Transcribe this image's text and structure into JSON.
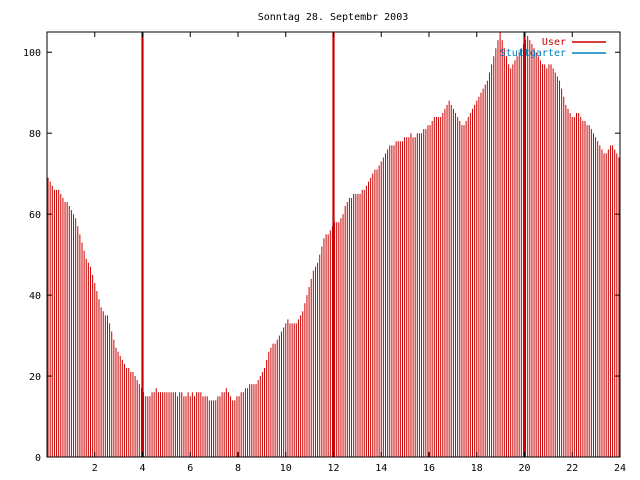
{
  "chart_data": {
    "type": "bar",
    "title": "Sonntag 28. Septembr 2003",
    "xlabel": "",
    "ylabel": "",
    "xlim": [
      0,
      24
    ],
    "ylim": [
      0,
      105
    ],
    "x_ticks": [
      2,
      4,
      6,
      8,
      10,
      12,
      14,
      16,
      18,
      20,
      22,
      24
    ],
    "y_ticks": [
      0,
      20,
      40,
      60,
      80,
      100
    ],
    "grid": false,
    "legend_position": "top-right",
    "series": [
      {
        "name": "User",
        "color": "#cc0000",
        "values": [
          69,
          68,
          67,
          66,
          66,
          66,
          65,
          64,
          63,
          63,
          62,
          61,
          60,
          59,
          57,
          55,
          53,
          51,
          49,
          48,
          47,
          45,
          43,
          41,
          39,
          37,
          36,
          35,
          35,
          33,
          31,
          29,
          27,
          26,
          25,
          24,
          23,
          22,
          22,
          21,
          21,
          20,
          19,
          18,
          17,
          16,
          15,
          15,
          15,
          16,
          16,
          17,
          16,
          16,
          16,
          16,
          16,
          16,
          16,
          16,
          16,
          15,
          16,
          16,
          15,
          15,
          16,
          15,
          16,
          15,
          16,
          16,
          16,
          15,
          15,
          15,
          14,
          14,
          14,
          14,
          15,
          15,
          16,
          16,
          17,
          16,
          15,
          14,
          14,
          15,
          15,
          16,
          16,
          17,
          17,
          18,
          18,
          18,
          18,
          19,
          20,
          21,
          22,
          24,
          26,
          27,
          28,
          28,
          29,
          30,
          31,
          32,
          33,
          34,
          33,
          33,
          33,
          33,
          34,
          35,
          36,
          38,
          40,
          42,
          44,
          46,
          47,
          48,
          50,
          52,
          54,
          55,
          55,
          56,
          57,
          58,
          58,
          58,
          59,
          60,
          62,
          63,
          64,
          64,
          65,
          65,
          65,
          65,
          66,
          66,
          67,
          68,
          69,
          70,
          71,
          71,
          72,
          73,
          74,
          75,
          76,
          77,
          77,
          77,
          78,
          78,
          78,
          78,
          79,
          79,
          79,
          80,
          79,
          79,
          80,
          80,
          80,
          81,
          81,
          82,
          82,
          83,
          84,
          84,
          84,
          84,
          85,
          86,
          87,
          88,
          87,
          86,
          85,
          84,
          83,
          82,
          82,
          83,
          84,
          85,
          86,
          87,
          88,
          89,
          90,
          91,
          92,
          93,
          95,
          97,
          99,
          101,
          103,
          105,
          103,
          101,
          99,
          97,
          96,
          97,
          98,
          99,
          100,
          101,
          102,
          103,
          104,
          103,
          102,
          101,
          100,
          99,
          98,
          97,
          97,
          96,
          97,
          97,
          96,
          95,
          94,
          93,
          91,
          89,
          87,
          86,
          85,
          84,
          84,
          85,
          85,
          84,
          83,
          83,
          82,
          82,
          81,
          80,
          79,
          78,
          77,
          76,
          75,
          75,
          76,
          77,
          77,
          76,
          75,
          74
        ]
      },
      {
        "name": "Stuttgarter",
        "color": "#0080c0",
        "values": []
      }
    ],
    "spikes": [
      4.0,
      12.0,
      20.0
    ]
  }
}
